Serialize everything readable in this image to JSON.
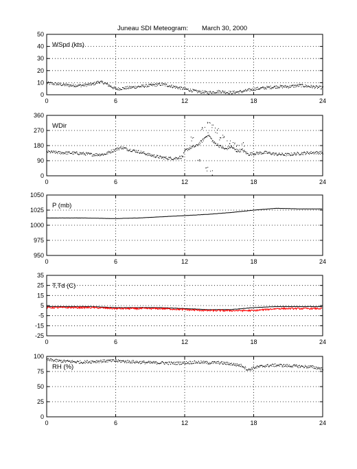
{
  "figure": {
    "title": "Juneau SDI Meteogram:",
    "date": "March 30, 2000"
  },
  "chart_data": [
    {
      "type": "scatter",
      "label": "WSpd (kts)",
      "xlim": [
        0,
        24
      ],
      "ylim": [
        0,
        50
      ],
      "xticks": [
        0,
        6,
        12,
        18,
        24
      ],
      "yticks": [
        0,
        10,
        20,
        30,
        40,
        50
      ],
      "grid": true,
      "series": [
        {
          "color": "#000000",
          "x": [
            0,
            1,
            2,
            3,
            4,
            4.5,
            5,
            6,
            7,
            8,
            9,
            10,
            11,
            12,
            13,
            14,
            15,
            16,
            17,
            18,
            19,
            20,
            21,
            22,
            23,
            24
          ],
          "y": [
            10,
            9,
            8,
            8,
            9,
            11,
            10,
            5,
            6,
            7,
            8,
            9,
            7,
            5,
            3,
            2,
            3,
            2,
            3,
            5,
            6,
            7,
            7,
            8,
            7,
            6
          ]
        }
      ]
    },
    {
      "type": "scatter",
      "label": "WDir",
      "xlim": [
        0,
        24
      ],
      "ylim": [
        0,
        360
      ],
      "xticks": [
        0,
        6,
        12,
        18,
        24
      ],
      "yticks": [
        0,
        90,
        180,
        270,
        360
      ],
      "grid": true,
      "series": [
        {
          "color": "#000000",
          "x": [
            0,
            1,
            2,
            3,
            4,
            5,
            6,
            6.5,
            7,
            8,
            9,
            10,
            11,
            11.8,
            12,
            12.5,
            13,
            13.5,
            14,
            14.5,
            15,
            15.5,
            16,
            16.5,
            17,
            17.5,
            18,
            19,
            20,
            21,
            22,
            23,
            24
          ],
          "y": [
            145,
            140,
            138,
            135,
            128,
            130,
            160,
            170,
            160,
            145,
            125,
            110,
            105,
            115,
            150,
            170,
            180,
            210,
            250,
            200,
            180,
            160,
            175,
            150,
            155,
            130,
            135,
            140,
            130,
            128,
            135,
            140,
            140
          ]
        },
        {
          "color": "#000000",
          "x": [
            12.6,
            13.2,
            13.6,
            13.9,
            14.1,
            14.3,
            14.5,
            14.8,
            15.1,
            15.4,
            15.8,
            16.2,
            16.6,
            17.0
          ],
          "y": [
            220,
            95,
            280,
            40,
            330,
            20,
            300,
            270,
            230,
            240,
            200,
            190,
            170,
            185
          ]
        }
      ]
    },
    {
      "type": "line",
      "label": "P (mb)",
      "xlim": [
        0,
        24
      ],
      "ylim": [
        950,
        1050
      ],
      "xticks": [
        0,
        6,
        12,
        18,
        24
      ],
      "yticks": [
        950,
        975,
        1000,
        1025,
        1050
      ],
      "grid": true,
      "series": [
        {
          "color": "#000000",
          "x": [
            0,
            3,
            6,
            8,
            10,
            12,
            14,
            16,
            18,
            20,
            22,
            24
          ],
          "y": [
            1012,
            1012,
            1011,
            1012,
            1014,
            1016,
            1018,
            1021,
            1025,
            1028,
            1027,
            1027
          ]
        }
      ]
    },
    {
      "type": "line",
      "label": "T,Td (C)",
      "xlim": [
        0,
        24
      ],
      "ylim": [
        -25,
        35
      ],
      "xticks": [
        0,
        6,
        12,
        18,
        24
      ],
      "yticks": [
        -25,
        -15,
        -5,
        5,
        15,
        25,
        35
      ],
      "grid": true,
      "series": [
        {
          "color": "#000000",
          "x": [
            0,
            2,
            4,
            6,
            8,
            10,
            12,
            14,
            16,
            18,
            20,
            22,
            24
          ],
          "y": [
            4,
            4,
            4,
            3,
            3,
            3,
            2,
            1,
            1,
            3,
            4,
            4,
            4
          ]
        },
        {
          "color": "#ff0000",
          "x": [
            0,
            2,
            4,
            6,
            8,
            10,
            12,
            14,
            16,
            18,
            20,
            22,
            24
          ],
          "y": [
            3,
            3,
            3,
            2,
            2,
            2,
            1,
            0,
            0,
            0,
            2,
            2,
            2
          ]
        }
      ]
    },
    {
      "type": "scatter",
      "label": "RH (%)",
      "xlim": [
        0,
        24
      ],
      "ylim": [
        0,
        100
      ],
      "xticks": [
        0,
        6,
        12,
        18,
        24
      ],
      "yticks": [
        0,
        25,
        50,
        75,
        100
      ],
      "grid": true,
      "series": [
        {
          "color": "#000000",
          "x": [
            0,
            1,
            2,
            3,
            4,
            5,
            6,
            7,
            8,
            9,
            10,
            11,
            12,
            13,
            14,
            15,
            16,
            17,
            17.5,
            18,
            19,
            20,
            21,
            22,
            23,
            24
          ],
          "y": [
            95,
            93,
            92,
            91,
            92,
            93,
            93,
            92,
            91,
            90,
            90,
            89,
            90,
            91,
            90,
            90,
            88,
            85,
            78,
            82,
            85,
            86,
            85,
            84,
            83,
            80
          ]
        }
      ]
    }
  ]
}
